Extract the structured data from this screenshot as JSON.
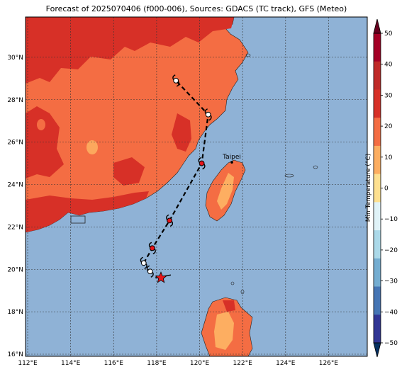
{
  "title": "Forecast of 2025070406 (f000-006), Sources: GDACS (TC track), GFS (Meteo)",
  "map": {
    "lon_ticks": [
      "112°E",
      "114°E",
      "116°E",
      "118°E",
      "120°E",
      "122°E",
      "124°E",
      "126°E"
    ],
    "lat_ticks": [
      "30°N",
      "28°N",
      "26°N",
      "24°N",
      "22°N",
      "20°N",
      "18°N",
      "16°N"
    ],
    "lon_range": [
      111.9,
      127.8
    ],
    "lat_range": [
      15.9,
      31.9
    ],
    "ocean_color": "#8fb2d6",
    "city": {
      "name": "Taipei",
      "lon": 121.5,
      "lat": 25.05
    },
    "track": [
      {
        "lon": 118.2,
        "lat": 19.6,
        "kind": "current-star"
      },
      {
        "lon": 117.7,
        "lat": 19.9,
        "kind": "black"
      },
      {
        "lon": 117.4,
        "lat": 20.3,
        "kind": "black"
      },
      {
        "lon": 117.8,
        "lat": 21.0,
        "kind": "red"
      },
      {
        "lon": 118.6,
        "lat": 22.3,
        "kind": "red"
      },
      {
        "lon": 120.1,
        "lat": 25.0,
        "kind": "red"
      },
      {
        "lon": 120.4,
        "lat": 27.3,
        "kind": "black"
      },
      {
        "lon": 118.9,
        "lat": 28.9,
        "kind": "black"
      }
    ]
  },
  "colorbar": {
    "label": "Min Temperature (°C)",
    "ticks": [
      "50",
      "40",
      "30",
      "20",
      "10",
      "0",
      "−10",
      "−20",
      "−30",
      "−40",
      "−50"
    ],
    "colors": [
      "#67001f",
      "#b2182b",
      "#d6604d",
      "#f4a582",
      "#fddbc7",
      "#f7f7f7",
      "#d1e5f0",
      "#92c5de",
      "#4393c3",
      "#2166ac",
      "#053061"
    ],
    "band_colors": [
      "#a50026",
      "#c02a28",
      "#d73027",
      "#f46d43",
      "#fdae61",
      "#fee090",
      "#e0f3f8",
      "#abd9e9",
      "#74add1",
      "#4575b4",
      "#313695"
    ]
  }
}
